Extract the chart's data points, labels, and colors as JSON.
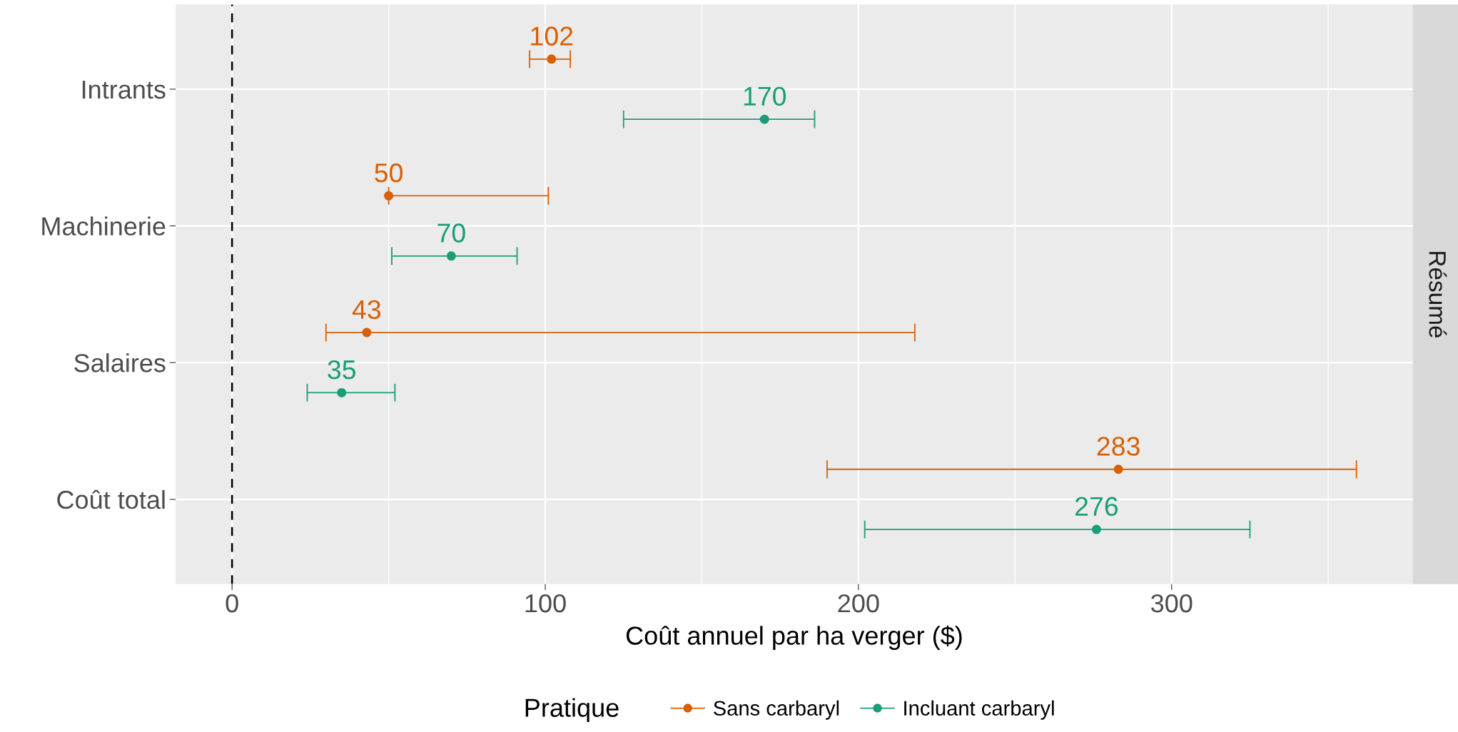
{
  "chart_data": {
    "type": "scatter",
    "orientation": "horizontal",
    "categories": [
      "Intrants",
      "Machinerie",
      "Salaires",
      "Coût total"
    ],
    "series": [
      {
        "name": "Sans carbaryl",
        "color": "#d95f02",
        "values": [
          102,
          50,
          43,
          283
        ],
        "errors": [
          [
            95,
            108
          ],
          [
            50,
            101
          ],
          [
            30,
            218
          ],
          [
            190,
            359
          ]
        ]
      },
      {
        "name": "Incluant carbaryl",
        "color": "#1b9e77",
        "values": [
          170,
          70,
          35,
          276
        ],
        "errors": [
          [
            125,
            186
          ],
          [
            51,
            91
          ],
          [
            24,
            52
          ],
          [
            202,
            325
          ]
        ]
      }
    ],
    "xlim": [
      -18,
      377
    ],
    "xticks": [
      0,
      100,
      200,
      300
    ],
    "xlabel": "Coût annuel par ha verger ($)",
    "legend_title": "Pratique",
    "legend": "bottom",
    "annotations": [
      "Résumé"
    ],
    "ref_lines": [
      {
        "axis": "x",
        "value": 0,
        "line_style": "dashed",
        "color": "#000000"
      }
    ],
    "data_labels": true,
    "grid": true,
    "marker": "circle",
    "line_style": "solid"
  }
}
